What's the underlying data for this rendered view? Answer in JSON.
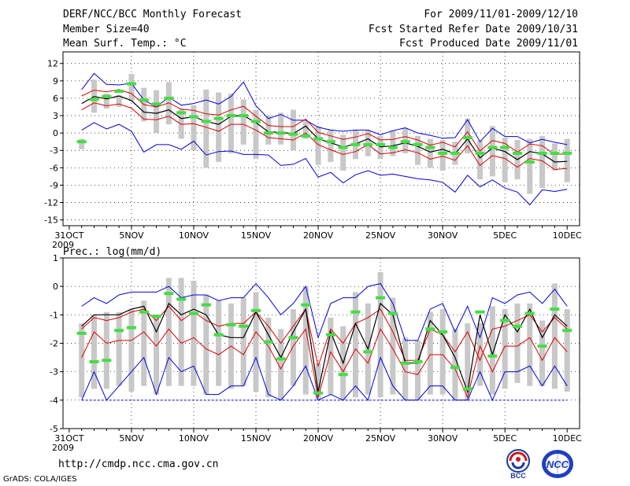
{
  "header": {
    "title": "DERF/NCC/BCC Monthly Forecast",
    "member_size": "Member Size=40",
    "variable_top": "Mean Surf. Temp.: °C",
    "forecast_period": "For 2009/11/01-2009/12/10",
    "started_refer": "Fcst Started Refer Date 2009/10/31",
    "produced": "Fcst Produced Date 2009/11/01"
  },
  "footer": {
    "url": "http://cmdp.ncc.cma.gov.cn",
    "credit": "GrADS: COLA/IGES",
    "logo_bcc_text": "BCC",
    "logo_ncc_text": "NCC"
  },
  "colors": {
    "envelope": "#0000dd",
    "spread": "#dd0000",
    "mean": "#000000",
    "box": "#c8c8c8",
    "obs": "#44dd44"
  },
  "chart_data": [
    {
      "type": "line",
      "title": "Mean Surf. Temp.: °C",
      "x_labels": [
        "31OCT",
        "5NOV",
        "10NOV",
        "15NOV",
        "20NOV",
        "25NOV",
        "30NOV",
        "5DEC",
        "10DEC"
      ],
      "x_label_days": [
        0,
        5,
        10,
        15,
        20,
        25,
        30,
        35,
        40
      ],
      "x_year_label": "2009",
      "xlim": [
        -0.5,
        41
      ],
      "ylim": [
        -16,
        14
      ],
      "y_ticks": [
        12,
        9,
        6,
        3,
        0,
        -3,
        -6,
        -9,
        -12,
        -15
      ],
      "days": [
        1,
        2,
        3,
        4,
        5,
        6,
        7,
        8,
        9,
        10,
        11,
        12,
        13,
        14,
        15,
        16,
        17,
        18,
        19,
        20,
        21,
        22,
        23,
        24,
        25,
        26,
        27,
        28,
        29,
        30,
        31,
        32,
        33,
        34,
        35,
        36,
        37,
        38,
        39,
        40
      ],
      "series": [
        {
          "name": "ensemble max",
          "values": [
            7.5,
            10.3,
            8.4,
            8.3,
            8.6,
            5.7,
            4.5,
            6.2,
            4.8,
            5.1,
            5.7,
            5.0,
            6.3,
            8.8,
            4.7,
            2.5,
            3.2,
            2.2,
            2.2,
            1.0,
            0.5,
            0.3,
            0.5,
            0.5,
            -0.3,
            0.4,
            0.9,
            0.0,
            -0.4,
            -0.9,
            -0.8,
            2.3,
            -1.5,
            0.8,
            -0.6,
            -0.6,
            -1.7,
            -1.1,
            -1.6,
            -2.0
          ]
        },
        {
          "name": "upper spread",
          "values": [
            6.4,
            7.4,
            7.1,
            7.5,
            6.8,
            4.9,
            4.5,
            5.2,
            4.1,
            3.9,
            3.3,
            3.1,
            4.0,
            4.6,
            2.9,
            1.3,
            1.1,
            1.1,
            2.4,
            0.1,
            -0.5,
            -1.1,
            -0.7,
            -0.1,
            -1.2,
            -1.1,
            -0.6,
            -1.2,
            -2.1,
            -1.6,
            -2.4,
            0.2,
            -3.1,
            -1.3,
            -1.8,
            -3.3,
            -1.9,
            -2.2,
            -3.7,
            -3.6
          ]
        },
        {
          "name": "ensemble mean",
          "values": [
            5.1,
            6.3,
            5.9,
            6.4,
            5.6,
            3.6,
            3.4,
            4.0,
            2.5,
            2.8,
            2.0,
            1.5,
            2.9,
            3.0,
            1.8,
            0.2,
            0.1,
            -0.1,
            1.2,
            -1.0,
            -1.7,
            -2.4,
            -1.9,
            -1.0,
            -2.4,
            -2.2,
            -1.7,
            -2.3,
            -3.3,
            -2.8,
            -3.6,
            -1.0,
            -4.3,
            -2.6,
            -3.2,
            -4.6,
            -3.2,
            -3.6,
            -5.0,
            -4.9
          ]
        },
        {
          "name": "lower spread",
          "values": [
            4.0,
            5.2,
            4.7,
            5.0,
            4.3,
            2.4,
            2.3,
            2.9,
            1.5,
            1.6,
            1.0,
            0.3,
            1.5,
            1.5,
            0.5,
            -0.8,
            -1.0,
            -1.2,
            0.0,
            -2.0,
            -2.9,
            -3.7,
            -3.2,
            -2.0,
            -3.6,
            -3.4,
            -2.9,
            -3.4,
            -4.5,
            -4.0,
            -4.7,
            -2.2,
            -5.6,
            -3.9,
            -4.4,
            -5.9,
            -4.4,
            -4.8,
            -6.3,
            -6.1
          ]
        },
        {
          "name": "ensemble min",
          "values": [
            0.5,
            1.8,
            0.7,
            1.5,
            0.3,
            -3.3,
            -2.0,
            -2.0,
            -2.8,
            -1.4,
            -3.8,
            -3.2,
            -3.1,
            -3.7,
            -3.7,
            -3.8,
            -5.6,
            -5.4,
            -4.4,
            -7.6,
            -6.8,
            -8.6,
            -7.2,
            -6.5,
            -7.3,
            -7.1,
            -7.5,
            -7.9,
            -8.1,
            -8.5,
            -10.2,
            -7.3,
            -9.3,
            -8.1,
            -9.5,
            -10.2,
            -12.4,
            -9.8,
            -10.1,
            -9.7
          ]
        },
        {
          "name": "box upper",
          "values": [
            -1.0,
            9.2,
            6.8,
            6.5,
            10.2,
            7.8,
            7.4,
            8.8,
            4.2,
            4.8,
            7.5,
            7.0,
            6.8,
            5.8,
            4.0,
            3.0,
            3.5,
            4.0,
            2.0,
            1.2,
            0.6,
            -0.3,
            0.5,
            0.5,
            -0.5,
            0.5,
            0.8,
            -0.5,
            -1.0,
            -1.2,
            -1.5,
            2.5,
            -1.3,
            1.2,
            -0.8,
            -1.2,
            -1.0,
            -0.5,
            -1.8,
            -1.0
          ]
        },
        {
          "name": "box lower",
          "values": [
            -2.8,
            3.5,
            4.2,
            4.5,
            5.5,
            2.0,
            0.0,
            1.5,
            -1.0,
            -3.0,
            -6.0,
            -5.0,
            -3.5,
            -2.0,
            -4.5,
            -2.0,
            -2.0,
            -3.0,
            -1.0,
            -5.5,
            -5.0,
            -6.5,
            -4.5,
            -4.0,
            -4.5,
            -4.0,
            -3.5,
            -5.5,
            -6.0,
            -6.5,
            -5.5,
            -3.5,
            -8.0,
            -7.5,
            -8.5,
            -8.0,
            -10.5,
            -9.5,
            -6.5,
            -8.5
          ]
        },
        {
          "name": "observed",
          "values": [
            -1.5,
            5.8,
            6.3,
            7.2,
            8.5,
            5.7,
            5.0,
            6.0,
            3.5,
            2.8,
            2.0,
            2.5,
            3.0,
            3.0,
            2.0,
            0.0,
            0.0,
            -0.2,
            -0.5,
            -1.0,
            -1.5,
            -2.5,
            -2.0,
            -2.0,
            -2.0,
            -2.5,
            -1.5,
            -2.0,
            -2.5,
            -3.5,
            -3.5,
            -0.8,
            -3.5,
            -2.5,
            -2.5,
            -3.5,
            -5.0,
            -3.5,
            -3.5,
            -3.5
          ]
        }
      ]
    },
    {
      "type": "line",
      "title": "Prec.: log(mm/d)",
      "x_labels": [
        "31OCT",
        "5NOV",
        "10NOV",
        "15NOV",
        "20NOV",
        "25NOV",
        "30NOV",
        "5DEC",
        "10DEC"
      ],
      "x_label_days": [
        0,
        5,
        10,
        15,
        20,
        25,
        30,
        35,
        40
      ],
      "x_year_label": "2009",
      "xlim": [
        -0.5,
        41
      ],
      "ylim": [
        -5,
        1
      ],
      "y_ticks": [
        1,
        0,
        -1,
        -2,
        -3,
        -4,
        -5
      ],
      "days": [
        1,
        2,
        3,
        4,
        5,
        6,
        7,
        8,
        9,
        10,
        11,
        12,
        13,
        14,
        15,
        16,
        17,
        18,
        19,
        20,
        21,
        22,
        23,
        24,
        25,
        26,
        27,
        28,
        29,
        30,
        31,
        32,
        33,
        34,
        35,
        36,
        37,
        38,
        39,
        40
      ],
      "series": [
        {
          "name": "ensemble max",
          "values": [
            -0.7,
            -0.4,
            -0.6,
            -0.3,
            -0.2,
            -0.2,
            -0.2,
            0.0,
            -0.4,
            -0.3,
            -0.3,
            -0.5,
            -0.4,
            -0.4,
            0.1,
            -0.4,
            -1.0,
            -0.6,
            0.0,
            -1.8,
            -0.6,
            -0.4,
            -0.4,
            0.0,
            0.1,
            -0.6,
            -1.9,
            -1.9,
            -0.8,
            -0.6,
            -1.6,
            -0.7,
            -1.8,
            -0.4,
            -0.6,
            -0.3,
            -0.2,
            -0.6,
            -0.1,
            -0.7
          ]
        },
        {
          "name": "upper spread",
          "values": [
            -1.5,
            -1.1,
            -1.2,
            -1.1,
            -0.9,
            -0.8,
            -1.2,
            -0.7,
            -1.2,
            -0.9,
            -1.2,
            -1.4,
            -1.3,
            -1.3,
            -0.9,
            -1.4,
            -2.0,
            -1.4,
            -0.8,
            -2.8,
            -1.5,
            -2.0,
            -1.3,
            -1.1,
            -0.8,
            -1.6,
            -2.6,
            -2.6,
            -1.5,
            -1.7,
            -2.3,
            -1.6,
            -2.6,
            -1.5,
            -1.4,
            -1.2,
            -1.0,
            -1.6,
            -1.1,
            -1.5
          ]
        },
        {
          "name": "ensemble mean",
          "values": [
            -1.4,
            -1.0,
            -1.0,
            -1.0,
            -0.8,
            -0.7,
            -1.6,
            -0.6,
            -1.0,
            -0.8,
            -1.0,
            -1.7,
            -1.8,
            -1.8,
            -0.9,
            -1.7,
            -2.5,
            -1.6,
            -0.8,
            -3.7,
            -1.6,
            -2.7,
            -1.3,
            -2.2,
            -0.6,
            -1.0,
            -2.7,
            -2.7,
            -1.2,
            -1.7,
            -2.5,
            -3.7,
            -1.0,
            -2.4,
            -1.0,
            -1.6,
            -0.8,
            -1.8,
            -1.0,
            -1.4
          ]
        },
        {
          "name": "lower spread",
          "values": [
            -2.5,
            -1.6,
            -2.0,
            -1.9,
            -1.9,
            -1.6,
            -2.1,
            -1.5,
            -2.0,
            -1.8,
            -2.2,
            -2.4,
            -2.1,
            -2.4,
            -1.6,
            -2.1,
            -2.9,
            -2.1,
            -1.5,
            -3.9,
            -2.3,
            -3.0,
            -2.2,
            -2.7,
            -1.5,
            -2.2,
            -3.0,
            -3.1,
            -2.4,
            -2.4,
            -2.9,
            -3.9,
            -2.1,
            -3.0,
            -2.1,
            -2.1,
            -1.8,
            -2.6,
            -1.8,
            -2.3
          ]
        },
        {
          "name": "ensemble min",
          "values": [
            -4.0,
            -3.0,
            -4.0,
            -3.5,
            -3.0,
            -2.5,
            -3.8,
            -2.5,
            -3.0,
            -2.8,
            -3.8,
            -3.8,
            -3.5,
            -3.5,
            -2.5,
            -3.8,
            -4.0,
            -3.5,
            -2.8,
            -4.0,
            -3.8,
            -4.0,
            -3.5,
            -4.0,
            -2.5,
            -3.5,
            -4.0,
            -4.0,
            -3.5,
            -3.5,
            -4.0,
            -4.0,
            -3.0,
            -4.0,
            -3.0,
            -3.0,
            -2.8,
            -3.5,
            -2.8,
            -3.5
          ]
        },
        {
          "name": "box upper",
          "values": [
            -1.3,
            -1.0,
            -0.9,
            -0.9,
            -0.8,
            -0.5,
            -1.1,
            0.3,
            0.3,
            0.2,
            -0.3,
            -0.5,
            -0.6,
            -0.4,
            -0.2,
            -1.1,
            -1.5,
            -0.8,
            0.0,
            -2.7,
            -1.1,
            -1.4,
            -0.2,
            -0.6,
            0.5,
            -0.4,
            -1.8,
            -1.9,
            -0.9,
            -0.8,
            -1.5,
            -1.3,
            -1.3,
            -0.7,
            -0.8,
            -0.6,
            -0.6,
            -1.2,
            0.1,
            -0.8
          ]
        },
        {
          "name": "box lower",
          "values": [
            -3.9,
            -3.6,
            -3.6,
            -3.5,
            -3.7,
            -3.5,
            -3.8,
            -3.5,
            -3.5,
            -3.5,
            -3.8,
            -3.5,
            -3.6,
            -3.5,
            -3.7,
            -3.9,
            -4.0,
            -3.5,
            -3.8,
            -4.0,
            -3.8,
            -4.0,
            -3.9,
            -3.8,
            -3.9,
            -3.8,
            -4.0,
            -4.0,
            -3.8,
            -3.8,
            -4.0,
            -4.0,
            -3.5,
            -3.8,
            -3.6,
            -3.4,
            -3.5,
            -3.5,
            -3.6,
            -3.7
          ]
        },
        {
          "name": "observed",
          "values": [
            -1.65,
            -2.65,
            -2.6,
            -1.55,
            -1.45,
            -0.9,
            -1.05,
            -0.25,
            -0.45,
            -0.95,
            -0.65,
            -1.7,
            -1.35,
            -1.4,
            -0.85,
            -1.95,
            -2.55,
            -1.8,
            -0.65,
            -3.75,
            -1.7,
            -3.1,
            -0.9,
            -2.3,
            -0.4,
            -0.95,
            -2.7,
            -2.65,
            -1.5,
            -1.6,
            -2.85,
            -3.6,
            -0.9,
            -2.45,
            -1.2,
            -1.4,
            -0.95,
            -2.1,
            -0.8,
            -1.55
          ]
        }
      ]
    }
  ]
}
